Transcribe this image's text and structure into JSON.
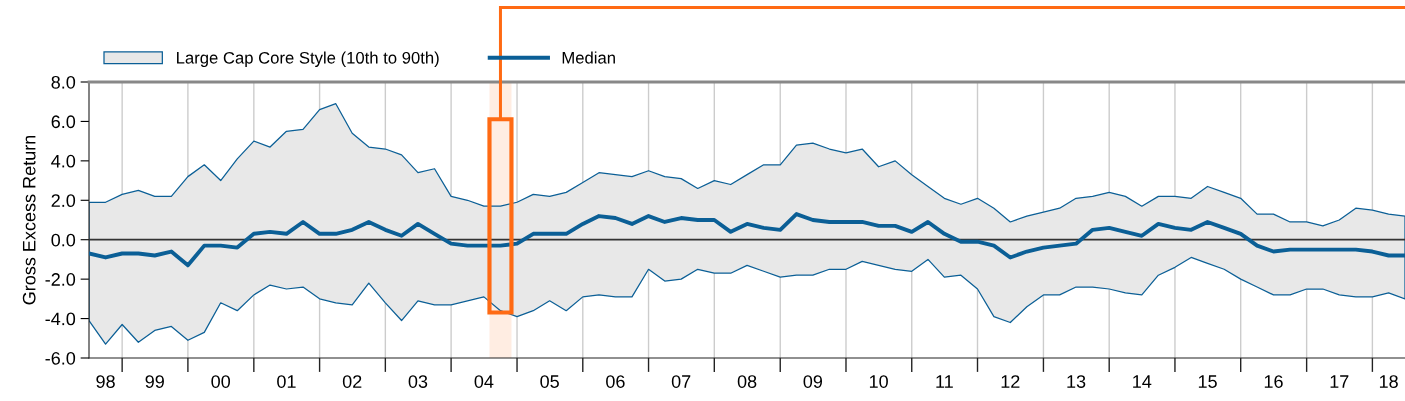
{
  "chart_data": {
    "type": "line",
    "ylabel": "Gross Excess Return",
    "x": [
      "1998-07",
      "1998-10",
      "1999-01",
      "1999-04",
      "1999-07",
      "1999-10",
      "2000-01",
      "2000-04",
      "2000-07",
      "2000-10",
      "2001-01",
      "2001-04",
      "2001-07",
      "2001-10",
      "2002-01",
      "2002-04",
      "2002-07",
      "2002-10",
      "2003-01",
      "2003-04",
      "2003-07",
      "2003-10",
      "2004-01",
      "2004-04",
      "2004-07",
      "2004-10",
      "2005-01",
      "2005-04",
      "2005-07",
      "2005-10",
      "2006-01",
      "2006-04",
      "2006-07",
      "2006-10",
      "2007-01",
      "2007-04",
      "2007-07",
      "2007-10",
      "2008-01",
      "2008-04",
      "2008-07",
      "2008-10",
      "2009-01",
      "2009-04",
      "2009-07",
      "2009-10",
      "2010-01",
      "2010-04",
      "2010-07",
      "2010-10",
      "2011-01",
      "2011-04",
      "2011-07",
      "2011-10",
      "2012-01",
      "2012-04",
      "2012-07",
      "2012-10",
      "2013-01",
      "2013-04",
      "2013-07",
      "2013-10",
      "2014-01",
      "2014-04",
      "2014-07",
      "2014-10",
      "2015-01",
      "2015-04",
      "2015-07",
      "2015-10",
      "2016-01",
      "2016-04",
      "2016-07",
      "2016-10",
      "2017-01",
      "2017-04",
      "2017-07",
      "2017-10",
      "2018-01",
      "2018-04",
      "2018-07"
    ],
    "series": [
      {
        "name": "Median",
        "color": "#0b5f96",
        "upper": [
          1.9,
          1.9,
          2.3,
          2.5,
          2.2,
          2.2,
          3.2,
          3.8,
          3.0,
          4.1,
          5.0,
          4.7,
          5.5,
          5.6,
          6.6,
          6.9,
          5.4,
          4.7,
          4.6,
          4.3,
          3.4,
          3.6,
          2.2,
          2.0,
          1.7,
          1.7,
          1.9,
          2.3,
          2.2,
          2.4,
          2.9,
          3.4,
          3.3,
          3.2,
          3.5,
          3.2,
          3.1,
          2.6,
          3.0,
          2.8,
          3.3,
          3.8,
          3.8,
          4.8,
          4.9,
          4.6,
          4.4,
          4.6,
          3.7,
          4.0,
          3.3,
          2.7,
          2.1,
          1.8,
          2.1,
          1.6,
          0.9,
          1.2,
          1.4,
          1.6,
          2.1,
          2.2,
          2.4,
          2.2,
          1.7,
          2.2,
          2.2,
          2.1,
          2.7,
          2.4,
          2.1,
          1.3,
          1.3,
          0.9,
          0.9,
          0.7,
          1.0,
          1.6,
          1.5,
          1.3,
          1.2
        ],
        "lower": [
          -4.1,
          -5.3,
          -4.3,
          -5.2,
          -4.6,
          -4.4,
          -5.1,
          -4.7,
          -3.2,
          -3.6,
          -2.8,
          -2.3,
          -2.5,
          -2.4,
          -3.0,
          -3.2,
          -3.3,
          -2.2,
          -3.2,
          -4.1,
          -3.1,
          -3.3,
          -3.3,
          -3.1,
          -2.9,
          -3.6,
          -3.9,
          -3.6,
          -3.1,
          -3.6,
          -2.9,
          -2.8,
          -2.9,
          -2.9,
          -1.5,
          -2.1,
          -2.0,
          -1.5,
          -1.7,
          -1.7,
          -1.3,
          -1.6,
          -1.9,
          -1.8,
          -1.8,
          -1.5,
          -1.5,
          -1.1,
          -1.3,
          -1.5,
          -1.6,
          -1.0,
          -1.9,
          -1.8,
          -2.5,
          -3.9,
          -4.2,
          -3.4,
          -2.8,
          -2.8,
          -2.4,
          -2.4,
          -2.5,
          -2.7,
          -2.8,
          -1.8,
          -1.4,
          -0.9,
          -1.2,
          -1.5,
          -2.0,
          -2.4,
          -2.8,
          -2.8,
          -2.5,
          -2.5,
          -2.8,
          -2.9,
          -2.9,
          -2.7,
          -3.0
        ],
        "values": [
          -0.7,
          -0.9,
          -0.7,
          -0.7,
          -0.8,
          -0.6,
          -1.3,
          -0.3,
          -0.3,
          -0.4,
          0.3,
          0.4,
          0.3,
          0.9,
          0.3,
          0.3,
          0.5,
          0.9,
          0.5,
          0.2,
          0.8,
          0.3,
          -0.2,
          -0.3,
          -0.3,
          -0.3,
          -0.2,
          0.3,
          0.3,
          0.3,
          0.8,
          1.2,
          1.1,
          0.8,
          1.2,
          0.9,
          1.1,
          1.0,
          1.0,
          0.4,
          0.8,
          0.6,
          0.5,
          1.3,
          1.0,
          0.9,
          0.9,
          0.9,
          0.7,
          0.7,
          0.4,
          0.9,
          0.3,
          -0.1,
          -0.1,
          -0.3,
          -0.9,
          -0.6,
          -0.4,
          -0.3,
          -0.2,
          0.5,
          0.6,
          0.4,
          0.2,
          0.8,
          0.6,
          0.5,
          0.9,
          0.6,
          0.3,
          -0.3,
          -0.6,
          -0.5,
          -0.5,
          -0.5,
          -0.5,
          -0.5,
          -0.6,
          -0.8,
          -0.8
        ]
      }
    ],
    "xlim": [
      "1998-07",
      "2018-07"
    ],
    "xticks": [
      {
        "value": "1999-01",
        "label": null
      },
      {
        "value": "2000-01",
        "label": null
      },
      {
        "value": "2001-01",
        "label": null
      },
      {
        "value": "2002-01",
        "label": null
      },
      {
        "value": "2003-01",
        "label": null
      },
      {
        "value": "2004-01",
        "label": null
      },
      {
        "value": "2005-01",
        "label": null
      },
      {
        "value": "2006-01",
        "label": null
      },
      {
        "value": "2007-01",
        "label": null
      },
      {
        "value": "2008-01",
        "label": null
      },
      {
        "value": "2009-01",
        "label": null
      },
      {
        "value": "2010-01",
        "label": null
      },
      {
        "value": "2011-01",
        "label": null
      },
      {
        "value": "2012-01",
        "label": null
      },
      {
        "value": "2013-01",
        "label": null
      },
      {
        "value": "2014-01",
        "label": null
      },
      {
        "value": "2015-01",
        "label": null
      },
      {
        "value": "2016-01",
        "label": null
      },
      {
        "value": "2017-01",
        "label": null
      },
      {
        "value": "2018-01",
        "label": null
      },
      {
        "value": "1998-10",
        "label": "98"
      },
      {
        "value": "1999-07",
        "label": "99"
      },
      {
        "value": "2000-07",
        "label": "00"
      },
      {
        "value": "2001-07",
        "label": "01"
      },
      {
        "value": "2002-07",
        "label": "02"
      },
      {
        "value": "2003-07",
        "label": "03"
      },
      {
        "value": "2004-07",
        "label": "04"
      },
      {
        "value": "2005-07",
        "label": "05"
      },
      {
        "value": "2006-07",
        "label": "06"
      },
      {
        "value": "2007-07",
        "label": "07"
      },
      {
        "value": "2008-07",
        "label": "08"
      },
      {
        "value": "2009-07",
        "label": "09"
      },
      {
        "value": "2010-07",
        "label": "10"
      },
      {
        "value": "2011-07",
        "label": "11"
      },
      {
        "value": "2012-07",
        "label": "12"
      },
      {
        "value": "2013-07",
        "label": "13"
      },
      {
        "value": "2014-07",
        "label": "14"
      },
      {
        "value": "2015-07",
        "label": "15"
      },
      {
        "value": "2016-07",
        "label": "16"
      },
      {
        "value": "2017-07",
        "label": "17"
      },
      {
        "value": "2018-04",
        "label": "18"
      }
    ],
    "annotations": [
      "Large Cap Core Style (10th to 90th)"
    ],
    "ylim": [
      -6,
      8
    ],
    "yticks": [
      {
        "value": -6,
        "label": "-6.0"
      },
      {
        "value": -4,
        "label": "-4.0"
      },
      {
        "value": -2,
        "label": "-2.0"
      },
      {
        "value": 0,
        "label": "0.0"
      },
      {
        "value": 2,
        "label": "2.0"
      },
      {
        "value": 4,
        "label": "4.0"
      },
      {
        "value": 6,
        "label": "6.0"
      },
      {
        "value": 8,
        "label": "8.0"
      }
    ],
    "ref_lines": [
      {
        "axis": "y",
        "value": 0,
        "color": "#333333"
      }
    ],
    "bands": [
      {
        "axis": "x",
        "from": "2004-08",
        "to": "2004-12",
        "color": "#ff6a13"
      }
    ],
    "grid": "x",
    "legend": "top",
    "marker": "none",
    "line_style": "solid"
  }
}
